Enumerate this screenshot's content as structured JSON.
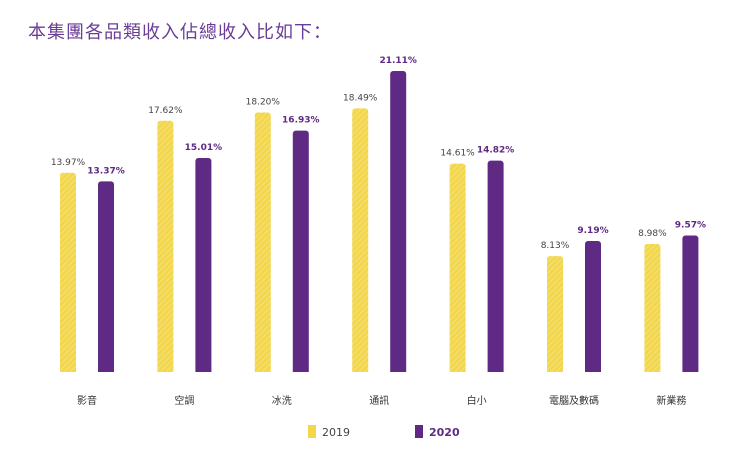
{
  "title": "本集團各品類收入佔總收入比如下：",
  "chart_data": {
    "type": "bar",
    "title": "本集團各品類收入佔總收入比如下：",
    "categories": [
      "影音",
      "空調",
      "冰洗",
      "通訊",
      "白小",
      "電腦及數碼",
      "新業務"
    ],
    "series": [
      {
        "name": "2019",
        "values": [
          13.97,
          17.62,
          18.2,
          18.49,
          14.61,
          8.13,
          8.98
        ],
        "labels": [
          "13.97%",
          "17.62%",
          "18.20%",
          "18.49%",
          "14.61%",
          "8.13%",
          "8.98%"
        ],
        "color": "#f2d64b"
      },
      {
        "name": "2020",
        "values": [
          13.37,
          15.01,
          16.93,
          21.11,
          14.82,
          9.19,
          9.57
        ],
        "labels": [
          "13.37%",
          "15.01%",
          "16.93%",
          "21.11%",
          "14.82%",
          "9.19%",
          "9.57%"
        ],
        "color": "#5e2a84"
      }
    ],
    "ylim": [
      0,
      21.11
    ],
    "grid": false,
    "legend": "bottom"
  }
}
